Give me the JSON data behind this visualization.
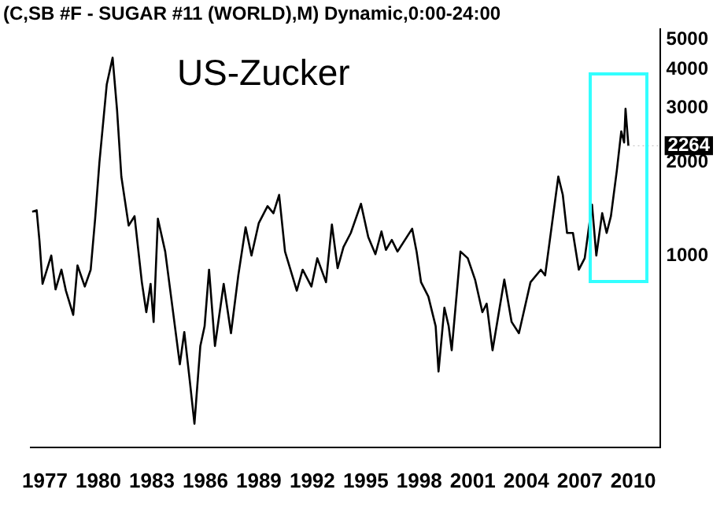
{
  "chart_data": {
    "type": "line",
    "title": "(C,SB #F - SUGAR #11 (WORLD),M) Dynamic,0:00-24:00",
    "annotations": [
      "US-Zucker",
      {
        "text": "2264",
        "x": 2009.73,
        "y": 2264
      }
    ],
    "log": "y",
    "grid": false,
    "legend": false,
    "marker": "none",
    "line_style": "solid",
    "xlim": [
      1976.2,
      2011.5
    ],
    "xticks": [
      1977,
      1980,
      1983,
      1986,
      1989,
      1992,
      1995,
      1998,
      2001,
      2004,
      2007,
      2010
    ],
    "ylim": [
      240,
      5400
    ],
    "yticks": [
      1000,
      2000,
      3000,
      4000,
      5000
    ],
    "series": [
      {
        "color": "#000000",
        "x": [
          1976.29,
          1976.54,
          1976.7,
          1976.87,
          1977.36,
          1977.6,
          1977.93,
          1978.18,
          1978.59,
          1978.83,
          1979.24,
          1979.57,
          1979.82,
          1980.06,
          1980.47,
          1980.8,
          1981.05,
          1981.29,
          1981.7,
          1982.03,
          1982.44,
          1982.69,
          1982.93,
          1983.1,
          1983.34,
          1983.75,
          1984.16,
          1984.57,
          1984.82,
          1985.14,
          1985.39,
          1985.72,
          1985.96,
          1986.21,
          1986.54,
          1987.03,
          1987.44,
          1987.85,
          1988.26,
          1988.59,
          1989.0,
          1989.49,
          1989.82,
          1990.14,
          1990.47,
          1991.13,
          1991.46,
          1991.95,
          1992.28,
          1992.77,
          1993.1,
          1993.42,
          1993.75,
          1994.16,
          1994.73,
          1995.14,
          1995.54,
          1995.88,
          1996.13,
          1996.46,
          1996.78,
          1997.6,
          1997.85,
          1998.1,
          1998.51,
          1998.92,
          1999.08,
          1999.41,
          1999.65,
          1999.82,
          2000.31,
          2000.72,
          2001.13,
          2001.54,
          2001.78,
          2002.11,
          2002.77,
          2003.18,
          2003.59,
          2004.24,
          2004.82,
          2005.06,
          2005.8,
          2006.05,
          2006.29,
          2006.62,
          2006.95,
          2007.28,
          2007.69,
          2007.93,
          2008.26,
          2008.51,
          2008.75,
          2009.08,
          2009.33,
          2009.49,
          2009.57,
          2009.73
        ],
        "values": [
          1385,
          1400,
          1110,
          810,
          1000,
          777,
          900,
          770,
          643,
          929,
          794,
          900,
          1315,
          2000,
          3570,
          4360,
          2950,
          1800,
          1250,
          1340,
          820,
          656,
          810,
          610,
          1315,
          1030,
          678,
          445,
          566,
          388,
          286,
          510,
          591,
          900,
          510,
          810,
          561,
          863,
          1234,
          1000,
          1274,
          1445,
          1370,
          1571,
          1030,
          770,
          900,
          794,
          980,
          820,
          1260,
          910,
          1065,
          1183,
          1470,
          1147,
          1010,
          1196,
          1043,
          1123,
          1030,
          1221,
          1030,
          820,
          737,
          591,
          422,
          678,
          591,
          494,
          1030,
          980,
          836,
          656,
          699,
          494,
          836,
          610,
          561,
          820,
          900,
          863,
          1800,
          1571,
          1183,
          1183,
          900,
          980,
          1460,
          1000,
          1370,
          1183,
          1340,
          1880,
          2520,
          2320,
          2980,
          2264
        ]
      }
    ]
  }
}
